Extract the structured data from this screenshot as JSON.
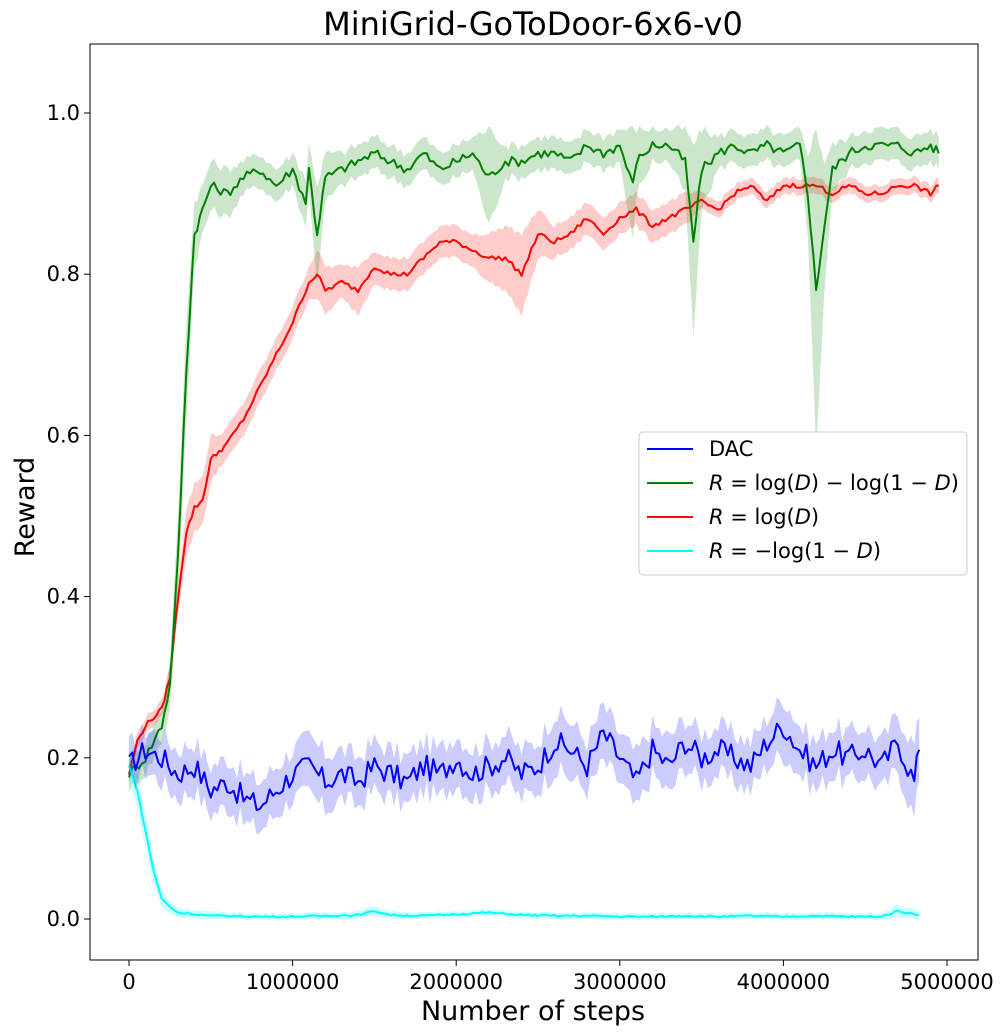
{
  "chart_data": {
    "type": "line",
    "title": "MiniGrid-GoToDoor-6x6-v0",
    "xlabel": "Number of steps",
    "ylabel": "Reward",
    "xlim": [
      -250000,
      5050000
    ],
    "ylim": [
      -0.05,
      1.08
    ],
    "xticks": [
      0,
      1000000,
      2000000,
      3000000,
      4000000,
      5000000
    ],
    "xtick_labels": [
      "0",
      "1000000",
      "2000000",
      "3000000",
      "4000000",
      "5000000"
    ],
    "yticks": [
      0.0,
      0.2,
      0.4,
      0.6,
      0.8,
      1.0
    ],
    "ytick_labels": [
      "0.0",
      "0.2",
      "0.4",
      "0.6",
      "0.8",
      "1.0"
    ],
    "grid": false,
    "legend_position": "center-right",
    "series": [
      {
        "name": "DAC",
        "color": "#0000ff",
        "x": [
          0,
          100000,
          200000,
          300000,
          400000,
          500000,
          600000,
          700000,
          800000,
          900000,
          1000000,
          1100000,
          1200000,
          1300000,
          1400000,
          1500000,
          1600000,
          1700000,
          1800000,
          1900000,
          2000000,
          2100000,
          2200000,
          2300000,
          2400000,
          2500000,
          2600000,
          2700000,
          2800000,
          2900000,
          3000000,
          3100000,
          3200000,
          3300000,
          3400000,
          3500000,
          3600000,
          3700000,
          3800000,
          3900000,
          4000000,
          4100000,
          4200000,
          4300000,
          4400000,
          4500000,
          4600000,
          4700000,
          4800000,
          4830000
        ],
        "y": [
          0.19,
          0.21,
          0.2,
          0.18,
          0.19,
          0.16,
          0.17,
          0.15,
          0.14,
          0.16,
          0.18,
          0.19,
          0.17,
          0.18,
          0.17,
          0.19,
          0.18,
          0.17,
          0.19,
          0.18,
          0.2,
          0.18,
          0.19,
          0.2,
          0.18,
          0.19,
          0.22,
          0.21,
          0.19,
          0.23,
          0.2,
          0.17,
          0.21,
          0.19,
          0.22,
          0.2,
          0.21,
          0.2,
          0.19,
          0.22,
          0.24,
          0.21,
          0.19,
          0.21,
          0.2,
          0.21,
          0.19,
          0.22,
          0.17,
          0.21
        ],
        "band": [
          0.025,
          0.025,
          0.03,
          0.03,
          0.03,
          0.03,
          0.03,
          0.03,
          0.03,
          0.03,
          0.03,
          0.035,
          0.035,
          0.03,
          0.03,
          0.03,
          0.03,
          0.03,
          0.03,
          0.03,
          0.03,
          0.03,
          0.03,
          0.03,
          0.03,
          0.03,
          0.035,
          0.035,
          0.03,
          0.035,
          0.03,
          0.035,
          0.03,
          0.035,
          0.03,
          0.03,
          0.03,
          0.03,
          0.03,
          0.03,
          0.035,
          0.03,
          0.03,
          0.03,
          0.03,
          0.03,
          0.03,
          0.035,
          0.045,
          0.04
        ]
      },
      {
        "name": "R = log(D) − log(1 − D)",
        "color": "#008000",
        "x": [
          0,
          100000,
          200000,
          250000,
          300000,
          350000,
          400000,
          450000,
          500000,
          600000,
          700000,
          800000,
          900000,
          1000000,
          1080000,
          1100000,
          1150000,
          1200000,
          1300000,
          1400000,
          1500000,
          1600000,
          1700000,
          1800000,
          1900000,
          2000000,
          2100000,
          2200000,
          2300000,
          2400000,
          2500000,
          2600000,
          2700000,
          2800000,
          2900000,
          3000000,
          3080000,
          3100000,
          3200000,
          3300000,
          3400000,
          3450000,
          3500000,
          3600000,
          3700000,
          3800000,
          3900000,
          4000000,
          4100000,
          4150000,
          4200000,
          4250000,
          4300000,
          4400000,
          4500000,
          4600000,
          4700000,
          4800000,
          4900000,
          4950000
        ],
        "y": [
          0.18,
          0.2,
          0.24,
          0.29,
          0.45,
          0.68,
          0.85,
          0.88,
          0.91,
          0.9,
          0.92,
          0.93,
          0.91,
          0.93,
          0.89,
          0.93,
          0.85,
          0.92,
          0.93,
          0.94,
          0.95,
          0.94,
          0.93,
          0.95,
          0.93,
          0.94,
          0.95,
          0.92,
          0.94,
          0.94,
          0.95,
          0.95,
          0.94,
          0.96,
          0.95,
          0.96,
          0.91,
          0.94,
          0.96,
          0.96,
          0.94,
          0.84,
          0.93,
          0.95,
          0.96,
          0.95,
          0.96,
          0.95,
          0.96,
          0.9,
          0.78,
          0.86,
          0.93,
          0.95,
          0.96,
          0.96,
          0.96,
          0.95,
          0.96,
          0.95
        ],
        "band": [
          0.02,
          0.02,
          0.02,
          0.03,
          0.05,
          0.06,
          0.04,
          0.03,
          0.03,
          0.03,
          0.02,
          0.02,
          0.02,
          0.02,
          0.03,
          0.03,
          0.06,
          0.03,
          0.02,
          0.02,
          0.02,
          0.02,
          0.02,
          0.02,
          0.02,
          0.02,
          0.02,
          0.06,
          0.02,
          0.02,
          0.02,
          0.02,
          0.02,
          0.02,
          0.02,
          0.02,
          0.07,
          0.04,
          0.02,
          0.02,
          0.04,
          0.12,
          0.05,
          0.02,
          0.02,
          0.02,
          0.02,
          0.02,
          0.02,
          0.05,
          0.2,
          0.08,
          0.03,
          0.02,
          0.02,
          0.02,
          0.02,
          0.02,
          0.02,
          0.02
        ]
      },
      {
        "name": "R = log(D)",
        "color": "#ff0000",
        "x": [
          0,
          50000,
          100000,
          150000,
          200000,
          250000,
          300000,
          350000,
          400000,
          450000,
          500000,
          550000,
          600000,
          700000,
          800000,
          900000,
          1000000,
          1100000,
          1150000,
          1200000,
          1300000,
          1400000,
          1500000,
          1600000,
          1700000,
          1800000,
          1900000,
          2000000,
          2100000,
          2200000,
          2300000,
          2400000,
          2500000,
          2600000,
          2700000,
          2800000,
          2900000,
          3000000,
          3100000,
          3200000,
          3300000,
          3400000,
          3500000,
          3600000,
          3700000,
          3800000,
          3900000,
          4000000,
          4100000,
          4200000,
          4300000,
          4400000,
          4500000,
          4600000,
          4700000,
          4800000,
          4900000,
          4950000
        ],
        "y": [
          0.18,
          0.22,
          0.24,
          0.25,
          0.26,
          0.3,
          0.4,
          0.48,
          0.51,
          0.52,
          0.57,
          0.58,
          0.59,
          0.62,
          0.66,
          0.7,
          0.74,
          0.79,
          0.8,
          0.78,
          0.79,
          0.78,
          0.81,
          0.8,
          0.8,
          0.82,
          0.84,
          0.84,
          0.83,
          0.82,
          0.82,
          0.8,
          0.85,
          0.84,
          0.85,
          0.87,
          0.85,
          0.87,
          0.88,
          0.86,
          0.87,
          0.88,
          0.89,
          0.88,
          0.9,
          0.91,
          0.89,
          0.91,
          0.91,
          0.91,
          0.9,
          0.91,
          0.9,
          0.9,
          0.91,
          0.91,
          0.9,
          0.91
        ],
        "band": [
          0.01,
          0.01,
          0.01,
          0.01,
          0.01,
          0.015,
          0.02,
          0.03,
          0.03,
          0.03,
          0.03,
          0.02,
          0.02,
          0.02,
          0.02,
          0.02,
          0.02,
          0.02,
          0.03,
          0.03,
          0.02,
          0.03,
          0.02,
          0.02,
          0.02,
          0.02,
          0.02,
          0.02,
          0.02,
          0.03,
          0.04,
          0.05,
          0.03,
          0.02,
          0.02,
          0.02,
          0.02,
          0.02,
          0.02,
          0.02,
          0.02,
          0.02,
          0.01,
          0.01,
          0.01,
          0.01,
          0.01,
          0.01,
          0.01,
          0.01,
          0.01,
          0.01,
          0.01,
          0.01,
          0.01,
          0.01,
          0.01,
          0.01
        ]
      },
      {
        "name": "R = −log(1 − D)",
        "color": "#00ffff",
        "x": [
          0,
          50000,
          100000,
          150000,
          200000,
          250000,
          300000,
          400000,
          500000,
          600000,
          800000,
          1000000,
          1200000,
          1400000,
          1500000,
          1600000,
          1800000,
          2000000,
          2200000,
          2400000,
          2600000,
          2800000,
          3000000,
          3200000,
          3400000,
          3600000,
          3800000,
          4000000,
          4200000,
          4400000,
          4600000,
          4700000,
          4800000,
          4830000
        ],
        "y": [
          0.19,
          0.16,
          0.11,
          0.06,
          0.025,
          0.015,
          0.008,
          0.006,
          0.004,
          0.004,
          0.003,
          0.003,
          0.004,
          0.005,
          0.01,
          0.005,
          0.004,
          0.006,
          0.008,
          0.005,
          0.004,
          0.004,
          0.003,
          0.003,
          0.004,
          0.003,
          0.004,
          0.003,
          0.004,
          0.003,
          0.003,
          0.01,
          0.006,
          0.005
        ],
        "band": [
          0.02,
          0.02,
          0.02,
          0.015,
          0.01,
          0.008,
          0.006,
          0.005,
          0.005,
          0.004,
          0.004,
          0.004,
          0.004,
          0.005,
          0.006,
          0.005,
          0.004,
          0.004,
          0.004,
          0.004,
          0.004,
          0.004,
          0.004,
          0.004,
          0.004,
          0.004,
          0.004,
          0.004,
          0.004,
          0.004,
          0.004,
          0.008,
          0.006,
          0.006
        ]
      }
    ]
  },
  "legend": {
    "items": [
      {
        "plain": "DAC"
      },
      {
        "parts": [
          [
            "R",
            "it"
          ],
          [
            " = log(",
            ""
          ],
          [
            "D",
            "it"
          ],
          [
            ") − log(1 − ",
            ""
          ],
          [
            "D",
            "it"
          ],
          [
            ")",
            ""
          ]
        ]
      },
      {
        "parts": [
          [
            "R",
            "it"
          ],
          [
            " = log(",
            ""
          ],
          [
            "D",
            "it"
          ],
          [
            ")",
            ""
          ]
        ]
      },
      {
        "parts": [
          [
            "R",
            "it"
          ],
          [
            " = −log(1 − ",
            ""
          ],
          [
            "D",
            "it"
          ],
          [
            ")",
            ""
          ]
        ]
      }
    ]
  }
}
